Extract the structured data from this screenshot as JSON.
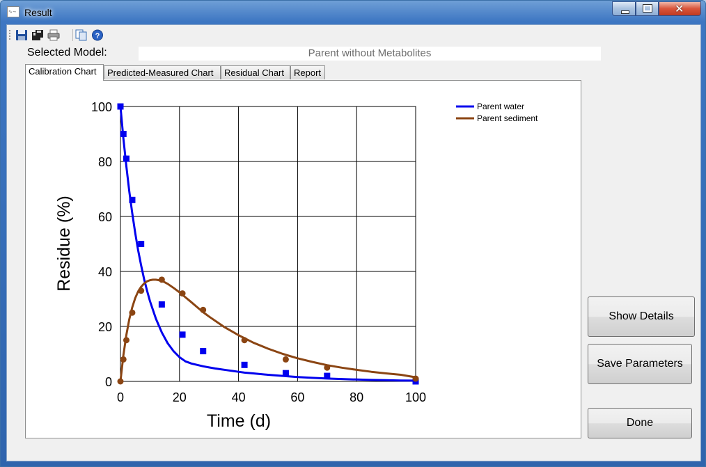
{
  "window": {
    "title": "Result"
  },
  "toolbar": {
    "icons": [
      "save-icon",
      "save-all-icon",
      "print-icon",
      "copy-icon",
      "help-icon"
    ]
  },
  "model": {
    "label": "Selected Model:",
    "value": "Parent without Metabolites"
  },
  "tabs": [
    {
      "label": "Calibration Chart",
      "active": true
    },
    {
      "label": "Predicted-Measured Chart",
      "active": false
    },
    {
      "label": "Residual Chart",
      "active": false
    },
    {
      "label": "Report",
      "active": false
    }
  ],
  "buttons": {
    "show_details": "Show Details",
    "save_parameters": "Save Parameters",
    "done": "Done"
  },
  "chart_data": {
    "type": "line",
    "xlabel": "Time (d)",
    "ylabel": "Residue (%)",
    "xlim": [
      0,
      100
    ],
    "ylim": [
      0,
      100
    ],
    "xticks": [
      "0",
      "20",
      "40",
      "60",
      "80",
      "100"
    ],
    "yticks": [
      "0",
      "20",
      "40",
      "60",
      "80",
      "100"
    ],
    "grid": true,
    "legend_position": "top-right",
    "series": [
      {
        "name": "Parent water",
        "color": "#0000ee",
        "marker": "square",
        "fit": [
          [
            0,
            100
          ],
          [
            1,
            88.4
          ],
          [
            2,
            78.2
          ],
          [
            3,
            69.1
          ],
          [
            4,
            61.1
          ],
          [
            5,
            54.0
          ],
          [
            6,
            47.7
          ],
          [
            7,
            42.2
          ],
          [
            8,
            37.3
          ],
          [
            9,
            33.0
          ],
          [
            10,
            29.2
          ],
          [
            12,
            22.8
          ],
          [
            14,
            17.8
          ],
          [
            16,
            13.9
          ],
          [
            18,
            11.0
          ],
          [
            20,
            8.8
          ],
          [
            22,
            7.3
          ],
          [
            24,
            6.5
          ],
          [
            26,
            6.0
          ],
          [
            28,
            5.5
          ],
          [
            30,
            5.1
          ],
          [
            32,
            4.7
          ],
          [
            34,
            4.4
          ],
          [
            36,
            4.1
          ],
          [
            38,
            3.8
          ],
          [
            40,
            3.5
          ],
          [
            42,
            3.2
          ],
          [
            45,
            2.9
          ],
          [
            50,
            2.4
          ],
          [
            55,
            2.0
          ],
          [
            60,
            1.6
          ],
          [
            65,
            1.3
          ],
          [
            70,
            1.05
          ],
          [
            75,
            0.85
          ],
          [
            80,
            0.68
          ],
          [
            85,
            0.54
          ],
          [
            90,
            0.43
          ],
          [
            95,
            0.34
          ],
          [
            100,
            0.27
          ]
        ],
        "points": [
          [
            0,
            100
          ],
          [
            1,
            90
          ],
          [
            2,
            81
          ],
          [
            4,
            66
          ],
          [
            7,
            50
          ],
          [
            14,
            28
          ],
          [
            21,
            17
          ],
          [
            28,
            11
          ],
          [
            42,
            6
          ],
          [
            56,
            3
          ],
          [
            70,
            2
          ],
          [
            100,
            0
          ]
        ]
      },
      {
        "name": "Parent sediment",
        "color": "#8b4513",
        "marker": "circle",
        "fit": [
          [
            0,
            0
          ],
          [
            1,
            9.5
          ],
          [
            2,
            16.9
          ],
          [
            3,
            22.6
          ],
          [
            4,
            27.0
          ],
          [
            5,
            30.3
          ],
          [
            6,
            32.7
          ],
          [
            7,
            34.4
          ],
          [
            8,
            35.6
          ],
          [
            9,
            36.4
          ],
          [
            10,
            36.8
          ],
          [
            11,
            37.0
          ],
          [
            12,
            37.0
          ],
          [
            13,
            36.8
          ],
          [
            14,
            36.6
          ],
          [
            16,
            35.5
          ],
          [
            18,
            34.0
          ],
          [
            20,
            32.4
          ],
          [
            22,
            30.6
          ],
          [
            24,
            28.8
          ],
          [
            26,
            27.0
          ],
          [
            28,
            25.2
          ],
          [
            30,
            23.6
          ],
          [
            35,
            19.9
          ],
          [
            40,
            16.8
          ],
          [
            45,
            14.1
          ],
          [
            50,
            11.9
          ],
          [
            55,
            10.0
          ],
          [
            60,
            8.4
          ],
          [
            65,
            7.1
          ],
          [
            70,
            5.9
          ],
          [
            75,
            5.0
          ],
          [
            80,
            4.2
          ],
          [
            85,
            3.5
          ],
          [
            90,
            2.9
          ],
          [
            95,
            2.4
          ],
          [
            100,
            1.5
          ]
        ],
        "points": [
          [
            0,
            0
          ],
          [
            1,
            8
          ],
          [
            2,
            15
          ],
          [
            4,
            25
          ],
          [
            7,
            33
          ],
          [
            14,
            37
          ],
          [
            21,
            32
          ],
          [
            28,
            26
          ],
          [
            42,
            15
          ],
          [
            56,
            8
          ],
          [
            70,
            5
          ],
          [
            100,
            1
          ]
        ]
      }
    ]
  }
}
